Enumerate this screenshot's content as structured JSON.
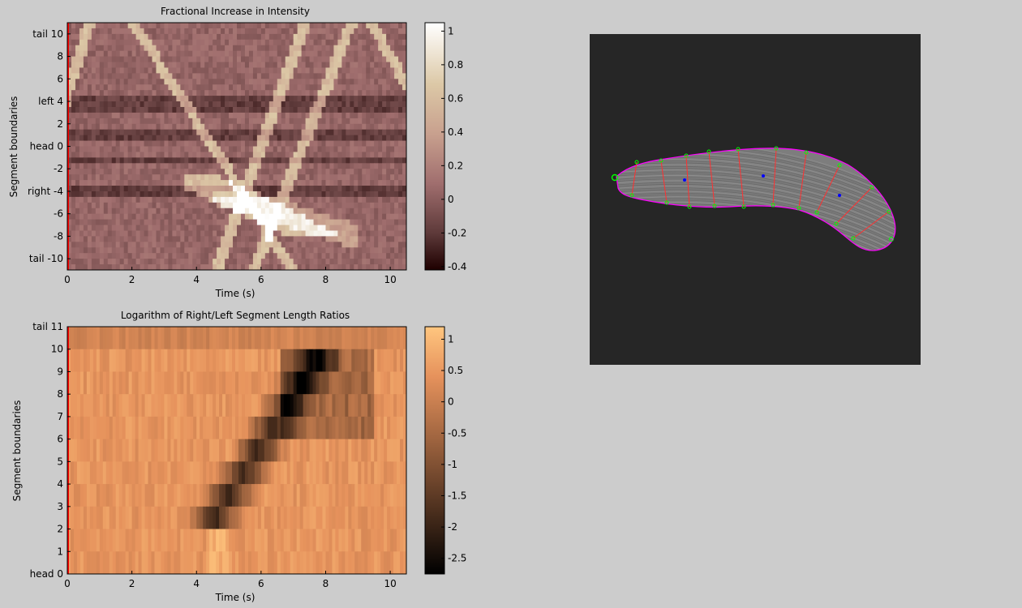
{
  "chart_data": [
    {
      "type": "heatmap",
      "title": "Fractional Increase in Intensity",
      "xlabel": "Time (s)",
      "ylabel": "Segment boundaries",
      "xlim": [
        0,
        10.5
      ],
      "ylim": [
        -11,
        11
      ],
      "x_ticks": [
        0,
        2,
        4,
        6,
        8,
        10
      ],
      "y_ticks": [
        {
          "value": 10,
          "label": "tail 10"
        },
        {
          "value": 8,
          "label": "8"
        },
        {
          "value": 6,
          "label": "6"
        },
        {
          "value": 4,
          "label": "left  4"
        },
        {
          "value": 2,
          "label": "2"
        },
        {
          "value": 0,
          "label": "head  0"
        },
        {
          "value": -2,
          "label": "-2"
        },
        {
          "value": -4,
          "label": "right  -4"
        },
        {
          "value": -6,
          "label": "-6"
        },
        {
          "value": -8,
          "label": "-8"
        },
        {
          "value": -10,
          "label": "tail -10"
        }
      ],
      "colorbar": {
        "range": [
          -0.42,
          1.05
        ],
        "ticks": [
          1,
          0.8,
          0.6,
          0.4,
          0.2,
          0,
          -0.2,
          -0.4
        ],
        "colormap": "pink"
      },
      "grid": false
    },
    {
      "type": "heatmap",
      "title": "Logarithm of Right/Left Segment Length Ratios",
      "xlabel": "Time (s)",
      "ylabel": "Segment boundaries",
      "xlim": [
        0,
        10.5
      ],
      "ylim": [
        0,
        11
      ],
      "x_ticks": [
        0,
        2,
        4,
        6,
        8,
        10
      ],
      "y_ticks": [
        {
          "value": 11,
          "label": "tail 11"
        },
        {
          "value": 10,
          "label": "10"
        },
        {
          "value": 9,
          "label": "9"
        },
        {
          "value": 8,
          "label": "8"
        },
        {
          "value": 7,
          "label": "7"
        },
        {
          "value": 6,
          "label": "6"
        },
        {
          "value": 5,
          "label": "5"
        },
        {
          "value": 4,
          "label": "4"
        },
        {
          "value": 3,
          "label": "3"
        },
        {
          "value": 2,
          "label": "2"
        },
        {
          "value": 1,
          "label": "1"
        },
        {
          "value": 0,
          "label": "head 0"
        }
      ],
      "colorbar": {
        "range": [
          -2.75,
          1.2
        ],
        "ticks": [
          1,
          0.5,
          0,
          -0.5,
          -1,
          -1.5,
          -2,
          -2.5
        ],
        "colormap": "copper"
      },
      "grid": false
    }
  ],
  "larva_view": {
    "background_color": "#262626",
    "outline_color": "#ff00ff",
    "segment_line_color": "#ff3030",
    "node_color": "#00ff00",
    "centroid_color": "#0000ff"
  },
  "colors": {
    "figure_bg": "#cccccc",
    "time_cursor": "#ff0000"
  }
}
